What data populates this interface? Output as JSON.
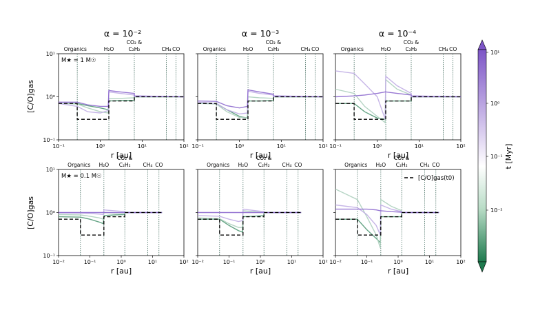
{
  "figure": {
    "col_titles": [
      "α = 10⁻²",
      "α = 10⁻³",
      "α = 10⁻⁴"
    ],
    "row_labels": [
      "M★ = 1 M☉",
      "M★ = 0.1 M☉"
    ],
    "ylabel": "[C/O]gas",
    "xlabel": "r [au]",
    "colorbar": {
      "label": "t [Myr]",
      "ticks": [
        "10¹",
        "10⁰",
        "10⁻¹",
        "10⁻²"
      ],
      "range_myr": [
        0.003,
        10
      ],
      "color_old": "#7d55c7",
      "color_mid": "#ffffff",
      "color_young": "#1e7a4e"
    },
    "legend": "[C/O]gas(t0)",
    "snowline_labels": [
      "Organics",
      "H₂O",
      "CO₂ &",
      "C₂H₂",
      "CH₄",
      "CO"
    ]
  },
  "chart_data": [
    {
      "type": "line",
      "panel": "M★ = 1 M☉, α = 10⁻²",
      "xlabel": "r [au]",
      "ylabel": "[C/O]gas",
      "xscale": "log",
      "yscale": "log",
      "xlim": [
        0.1,
        100
      ],
      "ylim": [
        0.1,
        10
      ],
      "xticks": [
        "10⁻¹",
        "10⁰",
        "10¹",
        "10²"
      ],
      "yticks": [
        "10¹",
        "10⁰",
        "10⁻¹"
      ],
      "snowlines_au": [
        0.28,
        1.6,
        6.5,
        38,
        65
      ],
      "initial_CO": {
        "r_au": [
          0.1,
          0.28,
          0.28,
          1.6,
          1.6,
          6.5,
          6.5,
          100
        ],
        "value": [
          0.7,
          0.7,
          0.3,
          0.3,
          0.8,
          0.8,
          1.0,
          1.0
        ]
      },
      "series": [
        {
          "t_myr": 0.005,
          "r_au": [
            0.1,
            0.28,
            0.5,
            1.0,
            1.55,
            1.6,
            3,
            6.5,
            6.5,
            100
          ],
          "value": [
            0.7,
            0.7,
            0.62,
            0.55,
            0.5,
            0.8,
            0.82,
            0.83,
            1.0,
            1.0
          ]
        },
        {
          "t_myr": 0.05,
          "r_au": [
            0.1,
            0.28,
            0.5,
            1.0,
            1.55,
            1.6,
            3,
            6.5,
            6.5,
            100
          ],
          "value": [
            0.7,
            0.68,
            0.55,
            0.45,
            0.42,
            0.9,
            0.92,
            0.95,
            1.0,
            1.0
          ]
        },
        {
          "t_myr": 0.5,
          "r_au": [
            0.1,
            0.28,
            0.5,
            1.0,
            1.55,
            1.6,
            3,
            6.5,
            6.5,
            100
          ],
          "value": [
            0.7,
            0.6,
            0.45,
            0.42,
            0.48,
            1.3,
            1.2,
            1.1,
            1.02,
            1.0
          ]
        },
        {
          "t_myr": 5,
          "r_au": [
            0.1,
            0.28,
            0.5,
            1.0,
            1.55,
            1.6,
            3,
            6.5,
            6.5,
            100
          ],
          "value": [
            0.75,
            0.75,
            0.65,
            0.6,
            0.6,
            1.4,
            1.3,
            1.2,
            1.05,
            1.0
          ]
        }
      ]
    },
    {
      "type": "line",
      "panel": "M★ = 1 M☉, α = 10⁻³",
      "xlabel": "r [au]",
      "ylabel": "[C/O]gas",
      "xscale": "log",
      "yscale": "log",
      "xlim": [
        0.1,
        100
      ],
      "ylim": [
        0.1,
        10
      ],
      "xticks": [
        "10⁻¹",
        "10⁰",
        "10¹",
        "10²"
      ],
      "yticks": [
        "10¹",
        "10⁰",
        "10⁻¹"
      ],
      "snowlines_au": [
        0.28,
        1.6,
        6.5,
        38,
        65
      ],
      "initial_CO": {
        "r_au": [
          0.1,
          0.28,
          0.28,
          1.6,
          1.6,
          6.5,
          6.5,
          100
        ],
        "value": [
          0.7,
          0.7,
          0.3,
          0.3,
          0.8,
          0.8,
          1.0,
          1.0
        ]
      },
      "series": [
        {
          "t_myr": 0.005,
          "r_au": [
            0.1,
            0.28,
            0.5,
            1.0,
            1.55,
            1.6,
            3,
            6.5,
            6.5,
            100
          ],
          "value": [
            0.7,
            0.7,
            0.5,
            0.35,
            0.32,
            0.8,
            0.8,
            0.82,
            1.0,
            1.0
          ]
        },
        {
          "t_myr": 0.05,
          "r_au": [
            0.1,
            0.28,
            0.5,
            1.0,
            1.55,
            1.6,
            3,
            6.5,
            6.5,
            100
          ],
          "value": [
            0.7,
            0.68,
            0.45,
            0.33,
            0.33,
            1.0,
            0.95,
            0.92,
            1.0,
            1.0
          ]
        },
        {
          "t_myr": 0.5,
          "r_au": [
            0.1,
            0.28,
            0.5,
            1.0,
            1.55,
            1.6,
            3,
            6.5,
            6.5,
            100
          ],
          "value": [
            0.75,
            0.7,
            0.5,
            0.4,
            0.42,
            1.35,
            1.2,
            1.1,
            1.02,
            1.0
          ]
        },
        {
          "t_myr": 5,
          "r_au": [
            0.1,
            0.28,
            0.5,
            1.0,
            1.55,
            1.6,
            3,
            6.5,
            6.5,
            100
          ],
          "value": [
            0.8,
            0.78,
            0.62,
            0.55,
            0.6,
            1.45,
            1.3,
            1.15,
            1.05,
            1.0
          ]
        }
      ]
    },
    {
      "type": "line",
      "panel": "M★ = 1 M☉, α = 10⁻⁴",
      "xlabel": "r [au]",
      "ylabel": "[C/O]gas",
      "xscale": "log",
      "yscale": "log",
      "xlim": [
        0.1,
        100
      ],
      "ylim": [
        0.1,
        10
      ],
      "xticks": [
        "10⁻¹",
        "10⁰",
        "10¹",
        "10²"
      ],
      "yticks": [
        "10¹",
        "10⁰",
        "10⁻¹"
      ],
      "snowlines_au": [
        0.28,
        1.6,
        6.5,
        38,
        65
      ],
      "initial_CO": {
        "r_au": [
          0.1,
          0.28,
          0.28,
          1.6,
          1.6,
          6.5,
          6.5,
          100
        ],
        "value": [
          0.7,
          0.7,
          0.3,
          0.3,
          0.8,
          0.8,
          1.0,
          1.0
        ]
      },
      "series": [
        {
          "t_myr": 0.005,
          "r_au": [
            0.1,
            0.28,
            0.5,
            1.0,
            1.55,
            1.6,
            3,
            6.5,
            6.5,
            100
          ],
          "value": [
            0.7,
            0.7,
            0.45,
            0.32,
            0.3,
            0.8,
            0.8,
            0.8,
            1.0,
            1.0
          ]
        },
        {
          "t_myr": 0.05,
          "r_au": [
            0.1,
            0.28,
            0.5,
            1.0,
            1.55,
            1.6,
            3,
            6.5,
            6.5,
            100
          ],
          "value": [
            1.5,
            1.2,
            0.6,
            0.35,
            0.25,
            2.5,
            1.5,
            1.1,
            1.0,
            1.0
          ]
        },
        {
          "t_myr": 0.5,
          "r_au": [
            0.1,
            0.28,
            0.5,
            1.0,
            1.55,
            1.6,
            3,
            6.5,
            6.5,
            100
          ],
          "value": [
            4.0,
            3.5,
            2.0,
            1.0,
            0.3,
            3.0,
            1.8,
            1.2,
            1.0,
            1.0
          ]
        },
        {
          "t_myr": 5,
          "r_au": [
            0.1,
            0.28,
            0.5,
            1.0,
            1.55,
            1.6,
            3,
            6.5,
            6.5,
            100
          ],
          "value": [
            1.0,
            1.05,
            1.1,
            1.2,
            1.3,
            1.3,
            1.2,
            1.1,
            1.05,
            1.0
          ]
        }
      ]
    },
    {
      "type": "line",
      "panel": "M★ = 0.1 M☉, α = 10⁻²",
      "xlabel": "r [au]",
      "ylabel": "[C/O]gas",
      "xscale": "log",
      "yscale": "log",
      "xlim": [
        0.01,
        100
      ],
      "ylim": [
        0.1,
        10
      ],
      "xticks": [
        "10⁻²",
        "10⁻¹",
        "10⁰",
        "10¹",
        "10²"
      ],
      "yticks": [
        "10¹",
        "10⁰",
        "10⁻¹"
      ],
      "snowlines_au": [
        0.05,
        0.28,
        1.3,
        7,
        16
      ],
      "initial_CO": {
        "r_au": [
          0.01,
          0.05,
          0.05,
          0.28,
          0.28,
          1.3,
          1.3,
          20
        ],
        "value": [
          0.7,
          0.7,
          0.3,
          0.3,
          0.8,
          0.8,
          1.0,
          1.0
        ]
      },
      "series": [
        {
          "t_myr": 0.005,
          "r_au": [
            0.01,
            0.05,
            0.1,
            0.2,
            0.27,
            0.28,
            0.6,
            1.3,
            1.3,
            20
          ],
          "value": [
            0.8,
            0.78,
            0.7,
            0.6,
            0.55,
            0.85,
            0.88,
            0.9,
            1.0,
            1.0
          ]
        },
        {
          "t_myr": 0.05,
          "r_au": [
            0.01,
            0.05,
            0.1,
            0.2,
            0.27,
            0.28,
            0.6,
            1.3,
            1.3,
            20
          ],
          "value": [
            0.9,
            0.88,
            0.82,
            0.75,
            0.7,
            1.0,
            0.98,
            0.97,
            1.0,
            1.0
          ]
        },
        {
          "t_myr": 0.5,
          "r_au": [
            0.01,
            0.05,
            0.1,
            0.2,
            0.27,
            0.28,
            0.6,
            1.3,
            1.3,
            20
          ],
          "value": [
            0.98,
            0.97,
            0.95,
            0.92,
            0.9,
            1.15,
            1.1,
            1.05,
            1.0,
            1.0
          ]
        },
        {
          "t_myr": 5,
          "r_au": [
            0.01,
            0.05,
            0.1,
            0.2,
            0.27,
            0.28,
            0.6,
            1.3,
            1.3,
            20
          ],
          "value": [
            1.0,
            1.0,
            1.0,
            1.0,
            1.0,
            1.0,
            1.0,
            1.0,
            1.0,
            1.0
          ]
        }
      ]
    },
    {
      "type": "line",
      "panel": "M★ = 0.1 M☉, α = 10⁻³",
      "xlabel": "r [au]",
      "ylabel": "[C/O]gas",
      "xscale": "log",
      "yscale": "log",
      "xlim": [
        0.01,
        100
      ],
      "ylim": [
        0.1,
        10
      ],
      "xticks": [
        "10⁻²",
        "10⁻¹",
        "10⁰",
        "10¹",
        "10²"
      ],
      "yticks": [
        "10¹",
        "10⁰",
        "10⁻¹"
      ],
      "snowlines_au": [
        0.05,
        0.28,
        1.3,
        7,
        16
      ],
      "initial_CO": {
        "r_au": [
          0.01,
          0.05,
          0.05,
          0.28,
          0.28,
          1.3,
          1.3,
          20
        ],
        "value": [
          0.7,
          0.7,
          0.3,
          0.3,
          0.8,
          0.8,
          1.0,
          1.0
        ]
      },
      "series": [
        {
          "t_myr": 0.005,
          "r_au": [
            0.01,
            0.05,
            0.1,
            0.2,
            0.27,
            0.28,
            0.6,
            1.3,
            1.3,
            20
          ],
          "value": [
            0.7,
            0.7,
            0.5,
            0.38,
            0.35,
            0.8,
            0.82,
            0.85,
            1.0,
            1.0
          ]
        },
        {
          "t_myr": 0.05,
          "r_au": [
            0.01,
            0.05,
            0.1,
            0.2,
            0.27,
            0.28,
            0.6,
            1.3,
            1.3,
            20
          ],
          "value": [
            0.75,
            0.72,
            0.55,
            0.45,
            0.45,
            1.1,
            1.05,
            1.0,
            1.0,
            1.0
          ]
        },
        {
          "t_myr": 0.5,
          "r_au": [
            0.01,
            0.05,
            0.1,
            0.2,
            0.27,
            0.28,
            0.6,
            1.3,
            1.3,
            20
          ],
          "value": [
            0.85,
            0.82,
            0.7,
            0.62,
            0.65,
            1.2,
            1.12,
            1.05,
            1.0,
            1.0
          ]
        },
        {
          "t_myr": 5,
          "r_au": [
            0.01,
            0.05,
            0.1,
            0.2,
            0.27,
            0.28,
            0.6,
            1.3,
            1.3,
            20
          ],
          "value": [
            1.0,
            1.0,
            1.0,
            1.0,
            1.0,
            1.0,
            1.0,
            1.0,
            1.0,
            1.0
          ]
        }
      ]
    },
    {
      "type": "line",
      "panel": "M★ = 0.1 M☉, α = 10⁻⁴",
      "xlabel": "r [au]",
      "ylabel": "[C/O]gas",
      "xscale": "log",
      "yscale": "log",
      "xlim": [
        0.01,
        100
      ],
      "ylim": [
        0.1,
        10
      ],
      "xticks": [
        "10⁻²",
        "10⁻¹",
        "10⁰",
        "10¹",
        "10²"
      ],
      "yticks": [
        "10¹",
        "10⁰",
        "10⁻¹"
      ],
      "snowlines_au": [
        0.05,
        0.28,
        1.3,
        7,
        16
      ],
      "initial_CO": {
        "r_au": [
          0.01,
          0.05,
          0.05,
          0.28,
          0.28,
          1.3,
          1.3,
          20
        ],
        "value": [
          0.7,
          0.7,
          0.3,
          0.3,
          0.8,
          0.8,
          1.0,
          1.0
        ]
      },
      "series": [
        {
          "t_myr": 0.005,
          "r_au": [
            0.01,
            0.05,
            0.1,
            0.2,
            0.27,
            0.28,
            0.6,
            1.3,
            1.3,
            20
          ],
          "value": [
            0.7,
            0.7,
            0.4,
            0.25,
            0.2,
            0.8,
            0.8,
            0.8,
            1.0,
            1.0
          ]
        },
        {
          "t_myr": 0.05,
          "r_au": [
            0.01,
            0.05,
            0.1,
            0.2,
            0.27,
            0.28,
            0.6,
            1.3,
            1.3,
            20
          ],
          "value": [
            3.5,
            2.0,
            0.8,
            0.3,
            0.15,
            2.0,
            1.4,
            1.1,
            1.0,
            1.0
          ]
        },
        {
          "t_myr": 0.5,
          "r_au": [
            0.01,
            0.05,
            0.1,
            0.2,
            0.27,
            0.28,
            0.6,
            1.3,
            1.3,
            20
          ],
          "value": [
            1.5,
            1.3,
            0.9,
            0.5,
            0.3,
            1.5,
            1.2,
            1.05,
            1.0,
            1.0
          ]
        },
        {
          "t_myr": 5,
          "r_au": [
            0.01,
            0.05,
            0.1,
            0.2,
            0.27,
            0.28,
            0.6,
            1.3,
            1.3,
            20
          ],
          "value": [
            1.2,
            1.2,
            1.2,
            1.15,
            1.1,
            1.1,
            1.05,
            1.02,
            1.0,
            1.0
          ]
        }
      ]
    }
  ]
}
